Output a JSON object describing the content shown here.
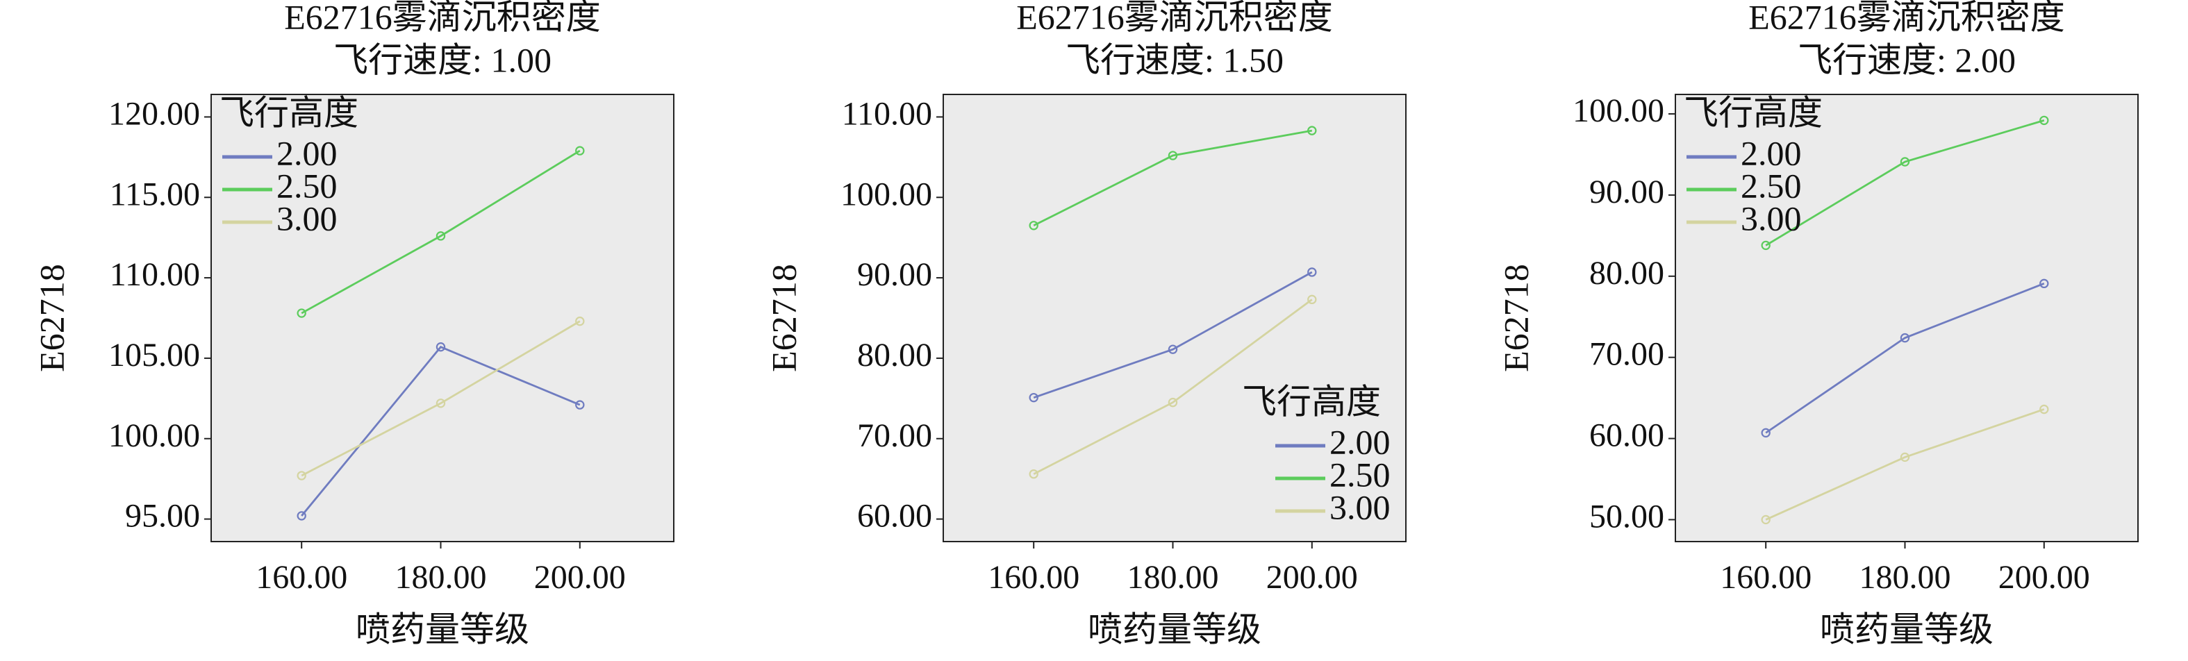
{
  "chart_data": [
    {
      "type": "line",
      "title": "E62716雾滴沉积密度",
      "subtitle": "飞行速度: 1.00",
      "xlabel": "喷药量等级",
      "ylabel": "E62718",
      "legend_title": "飞行高度",
      "legend": "upper left",
      "x": [
        160,
        180,
        200
      ],
      "xlim": [
        147,
        213.5
      ],
      "xticks": [
        {
          "value": 160,
          "label": "160.00"
        },
        {
          "value": 180,
          "label": "180.00"
        },
        {
          "value": 200,
          "label": "200.00"
        }
      ],
      "ylim": [
        93.6,
        121.4
      ],
      "yticks": [
        {
          "value": 95,
          "label": "95.00"
        },
        {
          "value": 100,
          "label": "100.00"
        },
        {
          "value": 105,
          "label": "105.00"
        },
        {
          "value": 110,
          "label": "110.00"
        },
        {
          "value": 115,
          "label": "115.00"
        },
        {
          "value": 120,
          "label": "120.00"
        }
      ],
      "series": [
        {
          "name": "2.00",
          "color": "#6f7cc0",
          "values": [
            95.2,
            105.7,
            102.1
          ]
        },
        {
          "name": "2.50",
          "color": "#5ccc5c",
          "values": [
            107.8,
            112.6,
            117.9
          ]
        },
        {
          "name": "3.00",
          "color": "#d4d4a0",
          "values": [
            97.7,
            102.2,
            107.3
          ]
        }
      ]
    },
    {
      "type": "line",
      "title": "E62716雾滴沉积密度",
      "subtitle": "飞行速度: 1.50",
      "xlabel": "喷药量等级",
      "ylabel": "E62718",
      "legend_title": "飞行高度",
      "legend": "lower right",
      "x": [
        160,
        180,
        200
      ],
      "xlim": [
        147,
        213.5
      ],
      "xticks": [
        {
          "value": 160,
          "label": "160.00"
        },
        {
          "value": 180,
          "label": "180.00"
        },
        {
          "value": 200,
          "label": "200.00"
        }
      ],
      "ylim": [
        57.2,
        112.8
      ],
      "yticks": [
        {
          "value": 60,
          "label": "60.00"
        },
        {
          "value": 70,
          "label": "70.00"
        },
        {
          "value": 80,
          "label": "80.00"
        },
        {
          "value": 90,
          "label": "90.00"
        },
        {
          "value": 100,
          "label": "100.00"
        },
        {
          "value": 110,
          "label": "110.00"
        }
      ],
      "series": [
        {
          "name": "2.00",
          "color": "#6f7cc0",
          "values": [
            75.1,
            81.1,
            90.7
          ]
        },
        {
          "name": "2.50",
          "color": "#5ccc5c",
          "values": [
            96.5,
            105.2,
            108.3
          ]
        },
        {
          "name": "3.00",
          "color": "#d4d4a0",
          "values": [
            65.6,
            74.5,
            87.3
          ]
        }
      ]
    },
    {
      "type": "line",
      "title": "E62716雾滴沉积密度",
      "subtitle": "飞行速度: 2.00",
      "xlabel": "喷药量等级",
      "ylabel": "E62718",
      "legend_title": "飞行高度",
      "legend": "upper left",
      "x": [
        160,
        180,
        200
      ],
      "xlim": [
        147,
        213.5
      ],
      "xticks": [
        {
          "value": 160,
          "label": "160.00"
        },
        {
          "value": 180,
          "label": "180.00"
        },
        {
          "value": 200,
          "label": "200.00"
        }
      ],
      "ylim": [
        47.3,
        102.4
      ],
      "yticks": [
        {
          "value": 50,
          "label": "50.00"
        },
        {
          "value": 60,
          "label": "60.00"
        },
        {
          "value": 70,
          "label": "70.00"
        },
        {
          "value": 80,
          "label": "80.00"
        },
        {
          "value": 90,
          "label": "90.00"
        },
        {
          "value": 100,
          "label": "100.00"
        }
      ],
      "series": [
        {
          "name": "2.00",
          "color": "#6f7cc0",
          "values": [
            60.7,
            72.4,
            79.1
          ]
        },
        {
          "name": "2.50",
          "color": "#5ccc5c",
          "values": [
            83.8,
            94.1,
            99.2
          ]
        },
        {
          "name": "3.00",
          "color": "#d4d4a0",
          "values": [
            50.0,
            57.7,
            63.6
          ]
        }
      ]
    }
  ]
}
